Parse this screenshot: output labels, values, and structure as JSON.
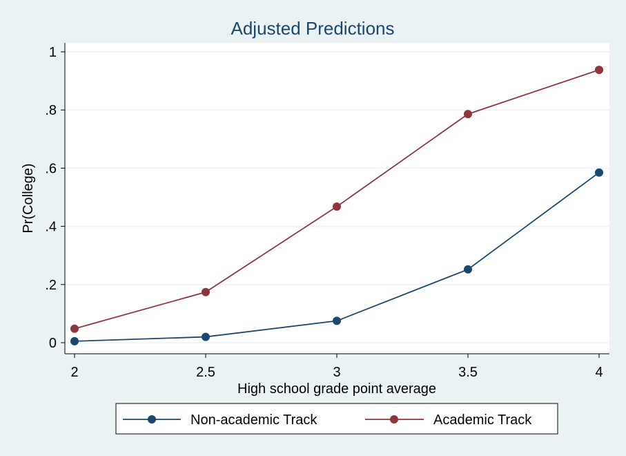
{
  "chart_data": {
    "type": "line",
    "title": "Adjusted Predictions",
    "xlabel": "High school grade point average",
    "ylabel": "Pr(College)",
    "x": [
      2,
      2.5,
      3,
      3.5,
      4
    ],
    "x_tick_values": [
      2,
      2.5,
      3,
      3.5,
      4
    ],
    "x_tick_labels": [
      "2",
      "2.5",
      "3",
      "3.5",
      "4"
    ],
    "y_tick_values": [
      0,
      0.2,
      0.4,
      0.6,
      0.8,
      1
    ],
    "y_tick_labels": [
      "0",
      ".2",
      ".4",
      ".6",
      ".8",
      "1"
    ],
    "xlim": [
      2,
      4
    ],
    "ylim": [
      0,
      1
    ],
    "grid": true,
    "legend_position": "bottom",
    "series": [
      {
        "name": "Non-academic Track",
        "color": "#1a476f",
        "values": [
          0.005,
          0.02,
          0.075,
          0.252,
          0.585
        ]
      },
      {
        "name": "Academic Track",
        "color": "#90353b",
        "values": [
          0.048,
          0.174,
          0.468,
          0.786,
          0.938
        ]
      }
    ]
  }
}
